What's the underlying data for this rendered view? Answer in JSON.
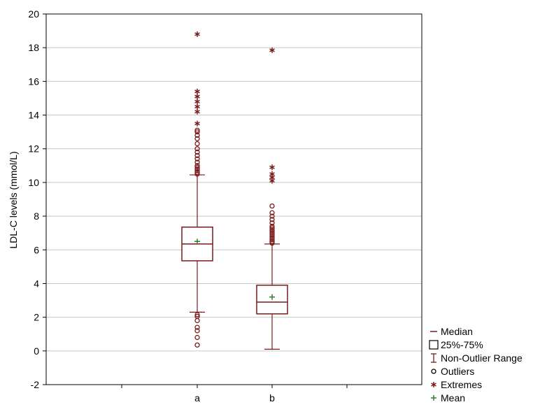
{
  "chart_data": {
    "type": "box",
    "title": "",
    "xlabel": "",
    "ylabel": "LDL-C levels (mmol/L)",
    "ylim": [
      -2,
      20
    ],
    "yticks": [
      -2,
      0,
      2,
      4,
      6,
      8,
      10,
      12,
      14,
      16,
      18,
      20
    ],
    "grid": true,
    "legend_position": "bottom-right outside",
    "colors": {
      "box": "#7a1a1a",
      "mean": "#2e7d32",
      "grid": "#c8c8c8"
    },
    "categories": [
      "a",
      "b"
    ],
    "groups": [
      {
        "name": "a",
        "whisker_low": 2.3,
        "q1": 5.35,
        "median": 6.35,
        "q3": 7.35,
        "whisker_high": 10.45,
        "mean": 6.5,
        "outliers": [
          0.35,
          0.8,
          1.2,
          1.4,
          1.8,
          2.05,
          2.15,
          10.5,
          10.6,
          10.7,
          10.8,
          10.9,
          11.0,
          11.2,
          11.4,
          11.6,
          11.8,
          12.0,
          12.3,
          12.6,
          12.8,
          13.0,
          13.1
        ],
        "extremes": [
          13.5,
          14.2,
          14.5,
          14.8,
          15.1,
          15.4,
          18.8
        ]
      },
      {
        "name": "b",
        "whisker_low": 0.1,
        "q1": 2.2,
        "median": 2.9,
        "q3": 3.9,
        "whisker_high": 6.35,
        "mean": 3.2,
        "outliers": [
          6.4,
          6.5,
          6.6,
          6.7,
          6.8,
          6.9,
          7.0,
          7.1,
          7.2,
          7.3,
          7.4,
          7.6,
          7.8,
          8.0,
          8.2,
          8.6
        ],
        "extremes": [
          10.1,
          10.3,
          10.5,
          10.9,
          17.85
        ]
      }
    ],
    "legend": [
      {
        "symbol": "median",
        "label": "Median"
      },
      {
        "symbol": "box",
        "label": "25%-75%"
      },
      {
        "symbol": "whisker",
        "label": "Non-Outlier Range"
      },
      {
        "symbol": "outlier",
        "label": "Outliers"
      },
      {
        "symbol": "extreme",
        "label": "Extremes"
      },
      {
        "symbol": "mean",
        "label": "Mean"
      }
    ]
  }
}
